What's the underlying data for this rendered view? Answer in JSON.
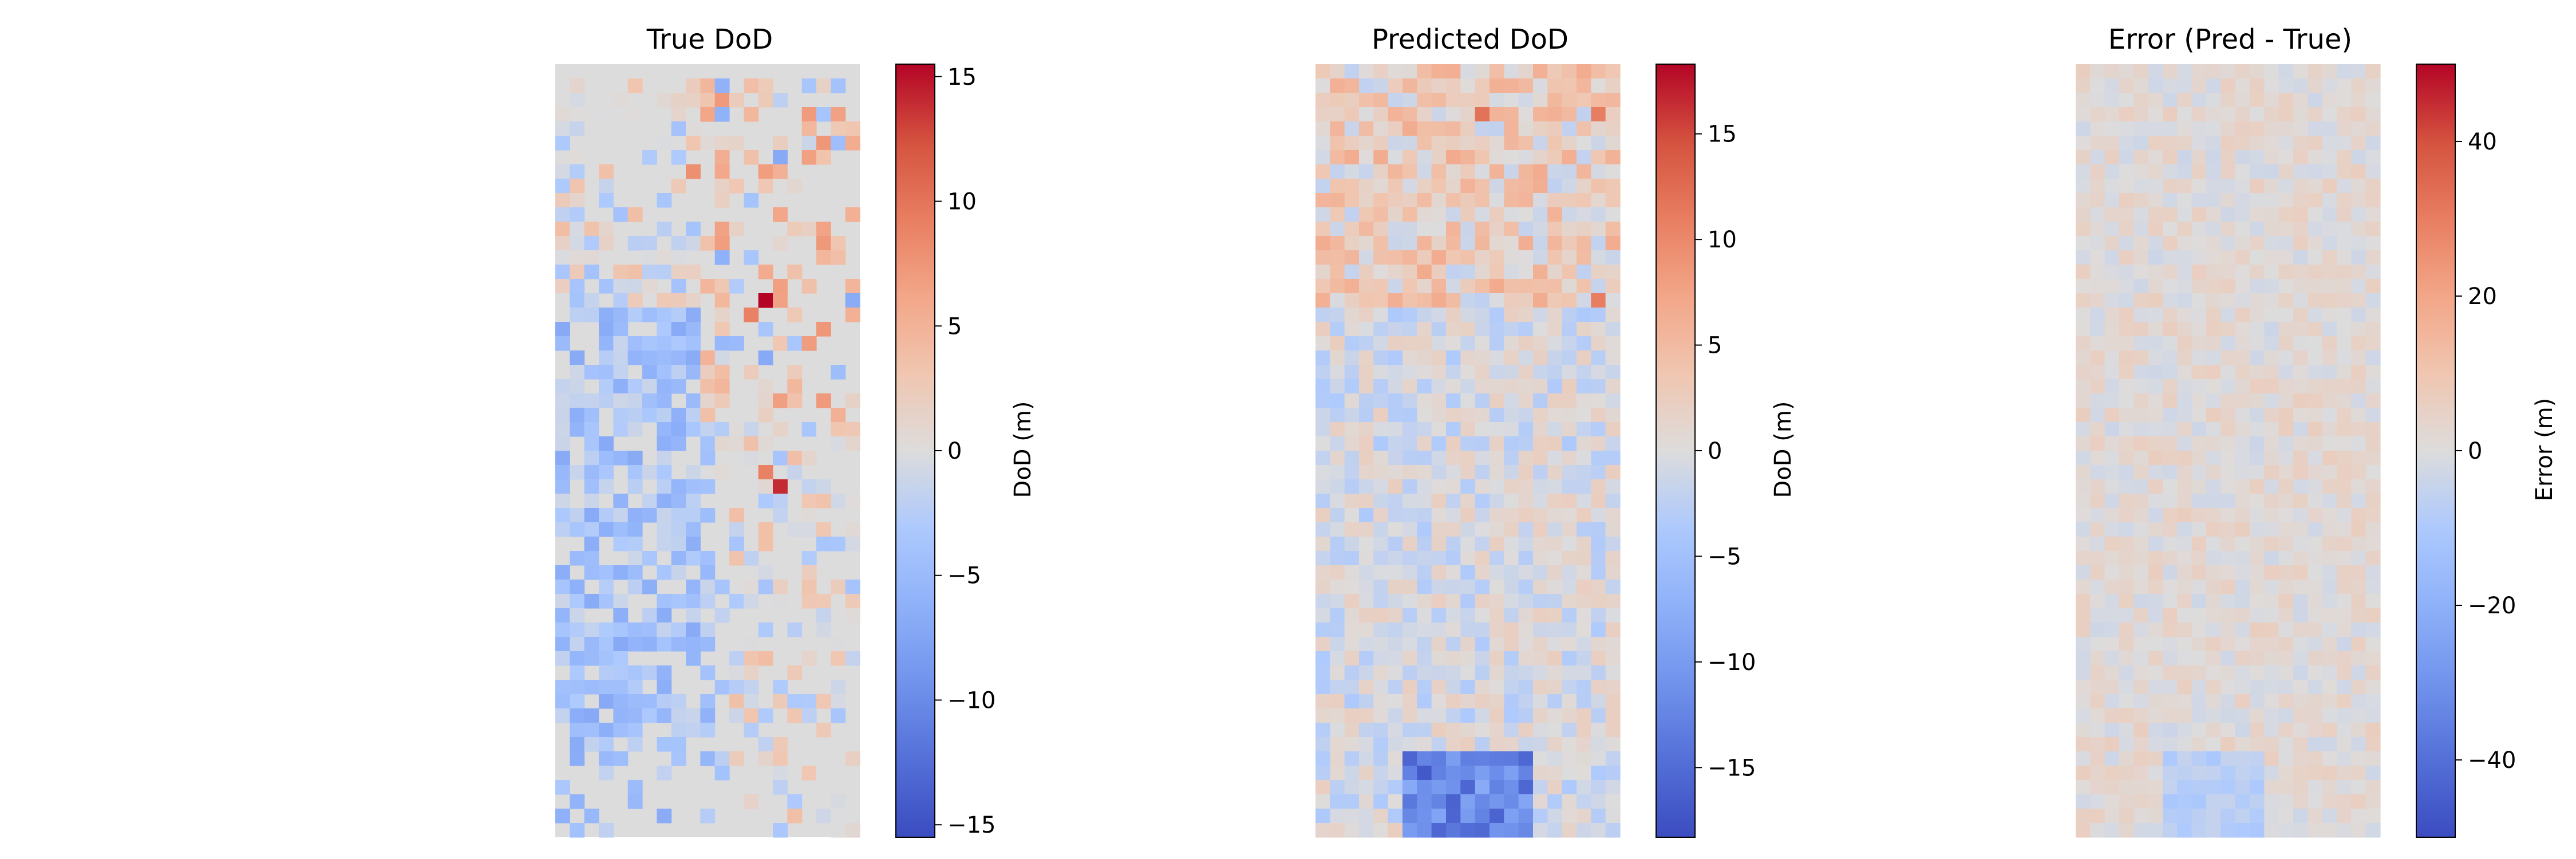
{
  "chart_data": [
    {
      "type": "heatmap",
      "title": "True DoD",
      "colorbar": {
        "label": "DoD (m)",
        "vmin": -15.5,
        "vmax": 15.5,
        "ticks": [
          -15,
          -10,
          -5,
          0,
          5,
          10,
          15
        ],
        "tick_labels": [
          "−15",
          "−10",
          "−5",
          "0",
          "5",
          "10",
          "15"
        ],
        "colormap": "coolwarm"
      },
      "grid": {
        "rows": 54,
        "cols": 21
      },
      "pattern": "sparse",
      "hotspots": [
        {
          "row": 16,
          "col": 14,
          "value": 15.5
        },
        {
          "row": 29,
          "col": 15,
          "value": 14
        },
        {
          "row": 28,
          "col": 14,
          "value": 9
        },
        {
          "row": 7,
          "col": 9,
          "value": 8
        },
        {
          "row": 17,
          "col": 13,
          "value": 9
        }
      ]
    },
    {
      "type": "heatmap",
      "title": "Predicted DoD",
      "colorbar": {
        "label": "DoD (m)",
        "vmin": -18.3,
        "vmax": 18.3,
        "ticks": [
          -15,
          -10,
          -5,
          0,
          5,
          10,
          15
        ],
        "tick_labels": [
          "−15",
          "−10",
          "−5",
          "0",
          "5",
          "10",
          "15"
        ],
        "colormap": "coolwarm"
      },
      "grid": {
        "rows": 54,
        "cols": 21
      },
      "pattern": "dense",
      "hotspots": [
        {
          "row": 3,
          "col": 11,
          "value": 12
        },
        {
          "row": 3,
          "col": 19,
          "value": 11
        },
        {
          "row": 16,
          "col": 19,
          "value": 11
        },
        {
          "row": 49,
          "col": 7,
          "value": -17
        },
        {
          "row": 51,
          "col": 9,
          "value": -16
        }
      ]
    },
    {
      "type": "heatmap",
      "title": "Error (Pred - True)",
      "colorbar": {
        "label": "Error (m)",
        "vmin": -50,
        "vmax": 50,
        "ticks": [
          -40,
          -20,
          0,
          20,
          40
        ],
        "tick_labels": [
          "−40",
          "−20",
          "0",
          "20",
          "40"
        ],
        "colormap": "coolwarm"
      },
      "grid": {
        "rows": 54,
        "cols": 21
      },
      "pattern": "error"
    }
  ]
}
